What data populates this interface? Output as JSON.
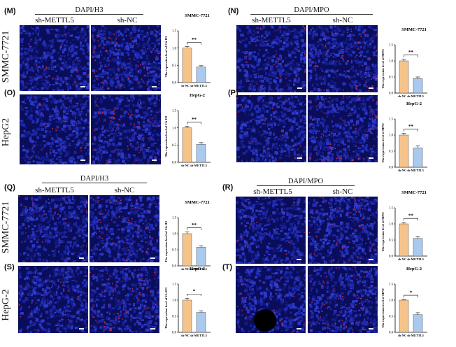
{
  "figure": {
    "top_left": {
      "stain": "DAPI/H3",
      "columns": [
        "sh-METTL5",
        "sh-NC"
      ],
      "panels": [
        {
          "label": "(M)",
          "row_label": "SMMC-7721"
        },
        {
          "label": "(O)",
          "row_label": "HepG2"
        }
      ]
    },
    "top_right": {
      "stain": "DAPI/MPO",
      "columns": [
        "sh-METTL5",
        "sh-NC"
      ],
      "panels": [
        {
          "label": "(N)"
        },
        {
          "label": "(P)"
        }
      ]
    },
    "bottom_left": {
      "stain": "DAPI/H3",
      "columns": [
        "sh-METTL5",
        "sh-NC"
      ],
      "panels": [
        {
          "label": "(Q)",
          "row_label": "SMMC-7721"
        },
        {
          "label": "(S)",
          "row_label": "HepG-2"
        }
      ]
    },
    "bottom_right": {
      "stain": "DAPI/MPO",
      "columns": [
        "sh-METTL5",
        "sh-NC"
      ],
      "panels": [
        {
          "label": "(R)"
        },
        {
          "label": "(T)"
        }
      ]
    }
  },
  "colors": {
    "bar_nc": "#f6c48a",
    "bar_mettl5": "#a9c9ee",
    "dapi_blue": "#2a35c8",
    "red_signal": "#d83040"
  },
  "chart_data": [
    {
      "id": "M",
      "type": "bar",
      "title": "SMMC-7721",
      "ylabel": "The expression level of Cit H3",
      "categories": [
        "sh-NC",
        "sh-METTL5"
      ],
      "values": [
        1.0,
        0.45
      ],
      "errors": [
        0.04,
        0.04
      ],
      "significance": "**",
      "ylim": [
        0,
        1.5
      ],
      "yticks": [
        "0.0",
        "0.5",
        "1.0",
        "1.5"
      ]
    },
    {
      "id": "O",
      "type": "bar",
      "title": "HepG-2",
      "ylabel": "The expression level of Cit H3",
      "categories": [
        "sh-NC",
        "sh-METTL5"
      ],
      "values": [
        1.0,
        0.52
      ],
      "errors": [
        0.04,
        0.05
      ],
      "significance": "**",
      "ylim": [
        0,
        1.5
      ],
      "yticks": [
        "0.0",
        "0.5",
        "1.0",
        "1.5"
      ]
    },
    {
      "id": "N",
      "type": "bar",
      "title": "SMMC-7721",
      "ylabel": "The expression level of MPO",
      "categories": [
        "sh-NC",
        "sh-METTL5"
      ],
      "values": [
        1.0,
        0.45
      ],
      "errors": [
        0.05,
        0.05
      ],
      "significance": "**",
      "ylim": [
        0,
        1.5
      ],
      "yticks": [
        "0.0",
        "0.5",
        "1.0",
        "1.5"
      ]
    },
    {
      "id": "P",
      "type": "bar",
      "title": "HepG-2",
      "ylabel": "The expression level of MPO",
      "categories": [
        "sh-NC",
        "sh-METTL5"
      ],
      "values": [
        1.0,
        0.6
      ],
      "errors": [
        0.05,
        0.06
      ],
      "significance": "**",
      "ylim": [
        0,
        1.5
      ],
      "yticks": [
        "0.0",
        "0.5",
        "1.0",
        "1.5"
      ]
    },
    {
      "id": "Q",
      "type": "bar",
      "title": "SMMC-7721",
      "ylabel": "The expression level of Cit H3",
      "categories": [
        "sh-NC",
        "sh-METTL5"
      ],
      "values": [
        1.0,
        0.58
      ],
      "errors": [
        0.05,
        0.04
      ],
      "significance": "**",
      "ylim": [
        0,
        1.5
      ],
      "yticks": [
        "0.0",
        "0.5",
        "1.0",
        "1.5"
      ]
    },
    {
      "id": "S",
      "type": "bar",
      "title": "HepG-2",
      "ylabel": "The expression level of Cit H3",
      "categories": [
        "sh-NC",
        "sh-METTL5"
      ],
      "values": [
        1.0,
        0.62
      ],
      "errors": [
        0.06,
        0.05
      ],
      "significance": "*",
      "ylim": [
        0,
        1.5
      ],
      "yticks": [
        "0.0",
        "0.5",
        "1.0",
        "1.5"
      ]
    },
    {
      "id": "R",
      "type": "bar",
      "title": "SMMC-7721",
      "ylabel": "The expression level of MPO",
      "categories": [
        "sh-NC",
        "sh-METTL5"
      ],
      "values": [
        1.0,
        0.55
      ],
      "errors": [
        0.04,
        0.05
      ],
      "significance": "**",
      "ylim": [
        0,
        1.5
      ],
      "yticks": [
        "0.0",
        "0.5",
        "1.0",
        "1.5"
      ]
    },
    {
      "id": "T",
      "type": "bar",
      "title": "HepG-2",
      "ylabel": "The expression level of MPO",
      "categories": [
        "sh-NC",
        "sh-METTL5"
      ],
      "values": [
        1.0,
        0.55
      ],
      "errors": [
        0.02,
        0.06
      ],
      "significance": "*",
      "ylim": [
        0,
        1.5
      ],
      "yticks": [
        "0.0",
        "0.5",
        "1.0",
        "1.5"
      ]
    }
  ]
}
